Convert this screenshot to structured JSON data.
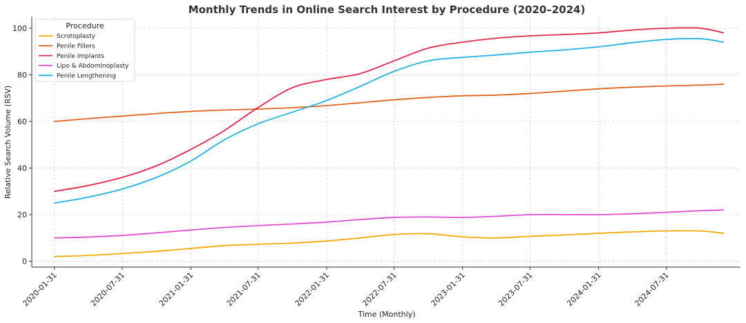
{
  "chart_data": {
    "type": "line",
    "title": "Monthly Trends in Online Search Interest by Procedure (2020–2024)",
    "xlabel": "Time (Monthly)",
    "ylabel": "Relative Search Volume (RSV)",
    "ylim": [
      -2.5,
      105
    ],
    "yticks": [
      0,
      20,
      40,
      60,
      80,
      100
    ],
    "xlim": [
      "2019-12-01",
      "2025-02-15"
    ],
    "xticks": [
      "2020-01-31",
      "2020-07-31",
      "2021-01-31",
      "2021-07-31",
      "2022-01-31",
      "2022-07-31",
      "2023-01-31",
      "2023-07-31",
      "2024-01-31",
      "2024-07-31"
    ],
    "grid": true,
    "legend": {
      "title": "Procedure",
      "placement": "top-left"
    },
    "x": [
      "2020-01-31",
      "2020-04-30",
      "2020-07-31",
      "2020-10-31",
      "2021-01-31",
      "2021-04-30",
      "2021-07-31",
      "2021-10-31",
      "2022-01-31",
      "2022-04-30",
      "2022-07-31",
      "2022-10-31",
      "2023-01-31",
      "2023-04-30",
      "2023-07-31",
      "2023-10-31",
      "2024-01-31",
      "2024-04-30",
      "2024-07-31",
      "2024-10-31",
      "2024-12-31"
    ],
    "series": [
      {
        "name": "Scrotoplasty",
        "color": "#f2a900",
        "values": [
          2,
          2.5,
          3.3,
          4.3,
          5.5,
          6.7,
          7.3,
          7.8,
          8.7,
          10,
          11.5,
          11.8,
          10.5,
          10,
          10.7,
          11.3,
          12,
          12.6,
          13,
          13,
          12
        ]
      },
      {
        "name": "Penile Fillers",
        "color": "#e0641e",
        "values": [
          60,
          61.2,
          62.3,
          63.4,
          64.3,
          64.9,
          65.3,
          65.9,
          66.8,
          68,
          69.3,
          70.3,
          71,
          71.3,
          72,
          73,
          74,
          74.7,
          75.2,
          75.6,
          76
        ]
      },
      {
        "name": "Penile Implants",
        "color": "#e0274a",
        "values": [
          30,
          32.5,
          36,
          41,
          48,
          56,
          66,
          74.5,
          78,
          80.5,
          86,
          91.5,
          94,
          95.7,
          96.7,
          97.3,
          98,
          99.2,
          100,
          100,
          98
        ]
      },
      {
        "name": "Lipo & Abdominoplasty",
        "color": "#e04bd3",
        "values": [
          10,
          10.4,
          11.1,
          12.2,
          13.4,
          14.5,
          15.3,
          16,
          16.8,
          17.9,
          18.8,
          19,
          18.8,
          19.3,
          20,
          20,
          20,
          20.4,
          21,
          21.7,
          22
        ]
      },
      {
        "name": "Penile Lengthening",
        "color": "#22b0e3",
        "values": [
          25,
          27.5,
          31,
          36,
          43,
          52,
          59,
          64,
          69,
          75,
          81.5,
          86,
          87.5,
          88.5,
          89.7,
          90.7,
          92,
          93.8,
          95.2,
          95.5,
          94
        ]
      }
    ]
  }
}
